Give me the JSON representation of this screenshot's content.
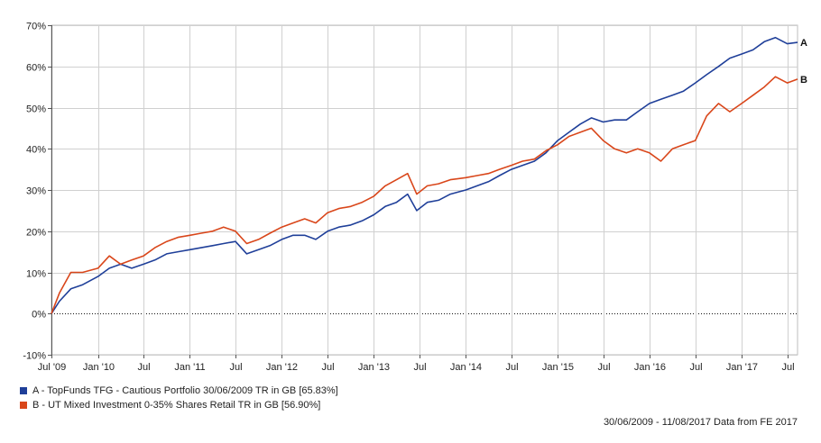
{
  "chart_data": {
    "type": "line",
    "ylim": [
      -10,
      70
    ],
    "yticks": [
      -10,
      0,
      10,
      20,
      30,
      40,
      50,
      60,
      70
    ],
    "ytick_labels": [
      "-10%",
      "0%",
      "10%",
      "20%",
      "30%",
      "40%",
      "50%",
      "60%",
      "70%"
    ],
    "xlim": [
      "2009-06-30",
      "2017-08-11"
    ],
    "xticks": [
      {
        "date": "2009-07-01",
        "label": "Jul '09"
      },
      {
        "date": "2010-01-01",
        "label": "Jan '10"
      },
      {
        "date": "2010-07-01",
        "label": "Jul"
      },
      {
        "date": "2011-01-01",
        "label": "Jan '11"
      },
      {
        "date": "2011-07-01",
        "label": "Jul"
      },
      {
        "date": "2012-01-01",
        "label": "Jan '12"
      },
      {
        "date": "2012-07-01",
        "label": "Jul"
      },
      {
        "date": "2013-01-01",
        "label": "Jan '13"
      },
      {
        "date": "2013-07-01",
        "label": "Jul"
      },
      {
        "date": "2014-01-01",
        "label": "Jan '14"
      },
      {
        "date": "2014-07-01",
        "label": "Jul"
      },
      {
        "date": "2015-01-01",
        "label": "Jan '15"
      },
      {
        "date": "2015-07-01",
        "label": "Jul"
      },
      {
        "date": "2016-01-01",
        "label": "Jan '16"
      },
      {
        "date": "2016-07-01",
        "label": "Jul"
      },
      {
        "date": "2017-01-01",
        "label": "Jan '17"
      },
      {
        "date": "2017-07-01",
        "label": "Jul"
      }
    ],
    "grid": true,
    "zero_line": "dotted",
    "legend_placement": "bottom-left",
    "series": [
      {
        "name": "A - TopFunds TFG - Cautious Portfolio 30/06/2009 TR in GB [65.83%]",
        "end_label": "A",
        "color": "#1f3f99",
        "points": [
          [
            "2009-06-30",
            0
          ],
          [
            "2009-08-01",
            3
          ],
          [
            "2009-09-15",
            6
          ],
          [
            "2009-11-01",
            7
          ],
          [
            "2010-01-01",
            9
          ],
          [
            "2010-02-15",
            11
          ],
          [
            "2010-04-01",
            12
          ],
          [
            "2010-05-15",
            11
          ],
          [
            "2010-07-01",
            12
          ],
          [
            "2010-08-15",
            13
          ],
          [
            "2010-10-01",
            14.5
          ],
          [
            "2010-11-15",
            15
          ],
          [
            "2011-01-01",
            15.5
          ],
          [
            "2011-02-15",
            16
          ],
          [
            "2011-04-01",
            16.5
          ],
          [
            "2011-05-15",
            17
          ],
          [
            "2011-07-01",
            17.5
          ],
          [
            "2011-08-15",
            14.5
          ],
          [
            "2011-10-01",
            15.5
          ],
          [
            "2011-11-15",
            16.5
          ],
          [
            "2012-01-01",
            18
          ],
          [
            "2012-02-15",
            19
          ],
          [
            "2012-04-01",
            19
          ],
          [
            "2012-05-15",
            18
          ],
          [
            "2012-07-01",
            20
          ],
          [
            "2012-08-15",
            21
          ],
          [
            "2012-10-01",
            21.5
          ],
          [
            "2012-11-15",
            22.5
          ],
          [
            "2013-01-01",
            24
          ],
          [
            "2013-02-15",
            26
          ],
          [
            "2013-04-01",
            27
          ],
          [
            "2013-05-15",
            29
          ],
          [
            "2013-06-20",
            25
          ],
          [
            "2013-08-01",
            27
          ],
          [
            "2013-09-15",
            27.5
          ],
          [
            "2013-11-01",
            29
          ],
          [
            "2014-01-01",
            30
          ],
          [
            "2014-02-15",
            31
          ],
          [
            "2014-04-01",
            32
          ],
          [
            "2014-05-15",
            33.5
          ],
          [
            "2014-07-01",
            35
          ],
          [
            "2014-08-15",
            36
          ],
          [
            "2014-10-01",
            37
          ],
          [
            "2014-11-15",
            39
          ],
          [
            "2015-01-01",
            42
          ],
          [
            "2015-02-15",
            44
          ],
          [
            "2015-04-01",
            46
          ],
          [
            "2015-05-15",
            47.5
          ],
          [
            "2015-07-01",
            46.5
          ],
          [
            "2015-08-15",
            47
          ],
          [
            "2015-10-01",
            47
          ],
          [
            "2015-11-15",
            49
          ],
          [
            "2016-01-01",
            51
          ],
          [
            "2016-02-15",
            52
          ],
          [
            "2016-04-01",
            53
          ],
          [
            "2016-05-15",
            54
          ],
          [
            "2016-07-01",
            56
          ],
          [
            "2016-08-15",
            58
          ],
          [
            "2016-10-01",
            60
          ],
          [
            "2016-11-15",
            62
          ],
          [
            "2017-01-01",
            63
          ],
          [
            "2017-02-15",
            64
          ],
          [
            "2017-04-01",
            66
          ],
          [
            "2017-05-15",
            67
          ],
          [
            "2017-07-01",
            65.5
          ],
          [
            "2017-08-11",
            65.83
          ]
        ]
      },
      {
        "name": "B - UT Mixed Investment 0-35% Shares Retail TR in GB [56.90%]",
        "end_label": "B",
        "color": "#d9461a",
        "points": [
          [
            "2009-06-30",
            0
          ],
          [
            "2009-08-01",
            5
          ],
          [
            "2009-09-15",
            10
          ],
          [
            "2009-11-01",
            10
          ],
          [
            "2010-01-01",
            11
          ],
          [
            "2010-02-15",
            14
          ],
          [
            "2010-04-01",
            12
          ],
          [
            "2010-05-15",
            13
          ],
          [
            "2010-07-01",
            14
          ],
          [
            "2010-08-15",
            16
          ],
          [
            "2010-10-01",
            17.5
          ],
          [
            "2010-11-15",
            18.5
          ],
          [
            "2011-01-01",
            19
          ],
          [
            "2011-02-15",
            19.5
          ],
          [
            "2011-04-01",
            20
          ],
          [
            "2011-05-15",
            21
          ],
          [
            "2011-07-01",
            20
          ],
          [
            "2011-08-15",
            17
          ],
          [
            "2011-10-01",
            18
          ],
          [
            "2011-11-15",
            19.5
          ],
          [
            "2012-01-01",
            21
          ],
          [
            "2012-02-15",
            22
          ],
          [
            "2012-04-01",
            23
          ],
          [
            "2012-05-15",
            22
          ],
          [
            "2012-07-01",
            24.5
          ],
          [
            "2012-08-15",
            25.5
          ],
          [
            "2012-10-01",
            26
          ],
          [
            "2012-11-15",
            27
          ],
          [
            "2013-01-01",
            28.5
          ],
          [
            "2013-02-15",
            31
          ],
          [
            "2013-04-01",
            32.5
          ],
          [
            "2013-05-15",
            34
          ],
          [
            "2013-06-20",
            29
          ],
          [
            "2013-08-01",
            31
          ],
          [
            "2013-09-15",
            31.5
          ],
          [
            "2013-11-01",
            32.5
          ],
          [
            "2014-01-01",
            33
          ],
          [
            "2014-02-15",
            33.5
          ],
          [
            "2014-04-01",
            34
          ],
          [
            "2014-05-15",
            35
          ],
          [
            "2014-07-01",
            36
          ],
          [
            "2014-08-15",
            37
          ],
          [
            "2014-10-01",
            37.5
          ],
          [
            "2014-11-15",
            39.5
          ],
          [
            "2015-01-01",
            41
          ],
          [
            "2015-02-15",
            43
          ],
          [
            "2015-04-01",
            44
          ],
          [
            "2015-05-15",
            45
          ],
          [
            "2015-07-01",
            42
          ],
          [
            "2015-08-15",
            40
          ],
          [
            "2015-10-01",
            39
          ],
          [
            "2015-11-15",
            40
          ],
          [
            "2016-01-01",
            39
          ],
          [
            "2016-02-15",
            37
          ],
          [
            "2016-04-01",
            40
          ],
          [
            "2016-05-15",
            41
          ],
          [
            "2016-07-01",
            42
          ],
          [
            "2016-08-15",
            48
          ],
          [
            "2016-10-01",
            51
          ],
          [
            "2016-11-15",
            49
          ],
          [
            "2017-01-01",
            51
          ],
          [
            "2017-02-15",
            53
          ],
          [
            "2017-04-01",
            55
          ],
          [
            "2017-05-15",
            57.5
          ],
          [
            "2017-07-01",
            56
          ],
          [
            "2017-08-11",
            56.9
          ]
        ]
      }
    ]
  },
  "footer": {
    "text": "30/06/2009 - 11/08/2017 Data from FE 2017"
  }
}
